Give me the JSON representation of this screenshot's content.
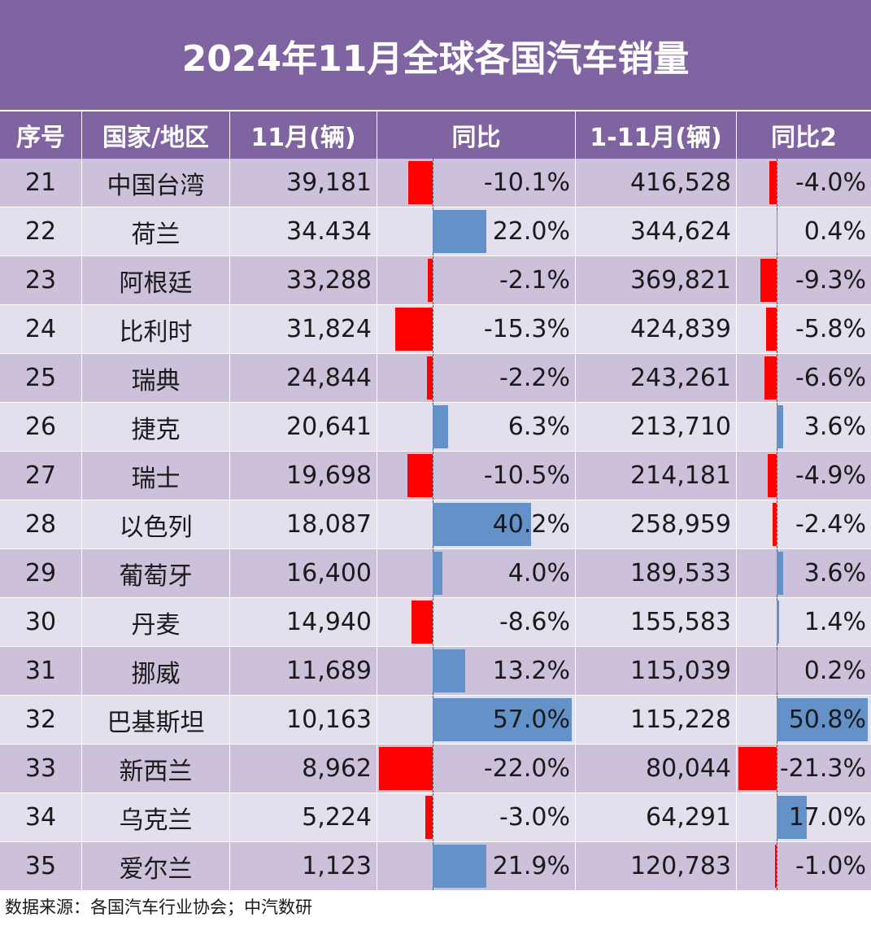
{
  "title": "2024年11月全球各国汽车销量",
  "headers": {
    "num": "序号",
    "country": "国家/地区",
    "nov": "11月(辆)",
    "yoy": "同比",
    "ytd": "1-11月(辆)",
    "yoy2": "同比2"
  },
  "colors": {
    "header_bg": "#8064a2",
    "row_odd": "#ccc0da",
    "row_even": "#e4dfec",
    "negative_bar": "#ff0000",
    "positive_bar": "#6591c9"
  },
  "chart_data": {
    "type": "table",
    "columns": [
      "序号",
      "国家/地区",
      "11月(辆)",
      "同比",
      "1-11月(辆)",
      "同比2"
    ],
    "rows": [
      {
        "num": "21",
        "country": "中国台湾",
        "nov": "39,181",
        "yoy": -10.1,
        "yoy_text": "-10.1%",
        "ytd": "416,528",
        "yoy2": -4.0,
        "yoy2_text": "-4.0%"
      },
      {
        "num": "22",
        "country": "荷兰",
        "nov": "34.434",
        "yoy": 22.0,
        "yoy_text": "22.0%",
        "ytd": "344,624",
        "yoy2": 0.4,
        "yoy2_text": "0.4%"
      },
      {
        "num": "23",
        "country": "阿根廷",
        "nov": "33,288",
        "yoy": -2.1,
        "yoy_text": "-2.1%",
        "ytd": "369,821",
        "yoy2": -9.3,
        "yoy2_text": "-9.3%"
      },
      {
        "num": "24",
        "country": "比利时",
        "nov": "31,824",
        "yoy": -15.3,
        "yoy_text": "-15.3%",
        "ytd": "424,839",
        "yoy2": -5.8,
        "yoy2_text": "-5.8%"
      },
      {
        "num": "25",
        "country": "瑞典",
        "nov": "24,844",
        "yoy": -2.2,
        "yoy_text": "-2.2%",
        "ytd": "243,261",
        "yoy2": -6.6,
        "yoy2_text": "-6.6%"
      },
      {
        "num": "26",
        "country": "捷克",
        "nov": "20,641",
        "yoy": 6.3,
        "yoy_text": "6.3%",
        "ytd": "213,710",
        "yoy2": 3.6,
        "yoy2_text": "3.6%"
      },
      {
        "num": "27",
        "country": "瑞士",
        "nov": "19,698",
        "yoy": -10.5,
        "yoy_text": "-10.5%",
        "ytd": "214,181",
        "yoy2": -4.9,
        "yoy2_text": "-4.9%"
      },
      {
        "num": "28",
        "country": "以色列",
        "nov": "18,087",
        "yoy": 40.2,
        "yoy_text": "40.2%",
        "ytd": "258,959",
        "yoy2": -2.4,
        "yoy2_text": "-2.4%"
      },
      {
        "num": "29",
        "country": "葡萄牙",
        "nov": "16,400",
        "yoy": 4.0,
        "yoy_text": "4.0%",
        "ytd": "189,533",
        "yoy2": 3.6,
        "yoy2_text": "3.6%"
      },
      {
        "num": "30",
        "country": "丹麦",
        "nov": "14,940",
        "yoy": -8.6,
        "yoy_text": "-8.6%",
        "ytd": "155,583",
        "yoy2": 1.4,
        "yoy2_text": "1.4%"
      },
      {
        "num": "31",
        "country": "挪威",
        "nov": "11,689",
        "yoy": 13.2,
        "yoy_text": "13.2%",
        "ytd": "115,039",
        "yoy2": 0.2,
        "yoy2_text": "0.2%"
      },
      {
        "num": "32",
        "country": "巴基斯坦",
        "nov": "10,163",
        "yoy": 57.0,
        "yoy_text": "57.0%",
        "ytd": "115,228",
        "yoy2": 50.8,
        "yoy2_text": "50.8%"
      },
      {
        "num": "33",
        "country": "新西兰",
        "nov": "8,962",
        "yoy": -22.0,
        "yoy_text": "-22.0%",
        "ytd": "80,044",
        "yoy2": -21.3,
        "yoy2_text": "-21.3%"
      },
      {
        "num": "34",
        "country": "乌克兰",
        "nov": "5,224",
        "yoy": -3.0,
        "yoy_text": "-3.0%",
        "ytd": "64,291",
        "yoy2": 17.0,
        "yoy2_text": "17.0%"
      },
      {
        "num": "35",
        "country": "爱尔兰",
        "nov": "1,123",
        "yoy": 21.9,
        "yoy_text": "21.9%",
        "ytd": "120,783",
        "yoy2": -1.0,
        "yoy2_text": "-1.0%"
      }
    ]
  },
  "source": "数据来源：各国汽车行业协会；中汽数研"
}
